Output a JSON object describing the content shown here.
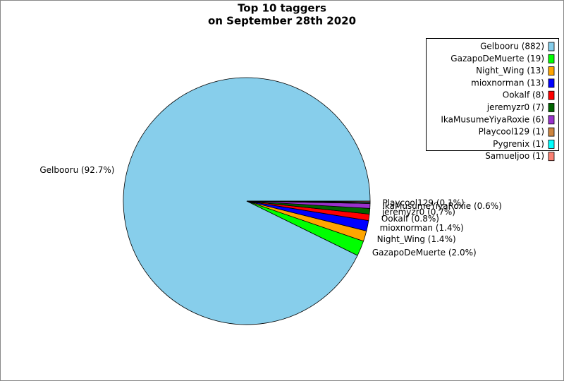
{
  "chart_data": {
    "type": "pie",
    "title": "Top 10 taggers",
    "subtitle": "on September 28th 2020",
    "categories": [
      "Gelbooru",
      "GazapoDeMuerte",
      "Night_Wing",
      "mioxnorman",
      "Ookalf",
      "jeremyzr0",
      "IkaMusumeYiyaRoxie",
      "Playcool129",
      "Pygrenix",
      "Samueljoo"
    ],
    "values": [
      882,
      19,
      13,
      13,
      8,
      7,
      6,
      1,
      1,
      1
    ],
    "value_labels": [
      "Gelbooru (92.7%)",
      "GazapoDeMuerte (2.0%)",
      "Night_Wing (1.4%)",
      "mioxnorman (1.4%)",
      "Ookalf (0.8%)",
      "jeremyzr0 (0.7%)",
      "IkaMusumeYiyaRoxie (0.6%)",
      "Playcool129 (0.1%)",
      null,
      null
    ],
    "legend_labels": [
      "Gelbooru (882)",
      "GazapoDeMuerte (19)",
      "Night_Wing (13)",
      "mioxnorman (13)",
      "Ookalf (8)",
      "jeremyzr0 (7)",
      "IkaMusumeYiyaRoxie (6)",
      "Playcool129 (1)",
      "Pygrenix (1)",
      "Samueljoo (1)"
    ],
    "colors": [
      "#87ceeb",
      "#00ff00",
      "#ffa500",
      "#0000ff",
      "#ff0000",
      "#006400",
      "#9932cc",
      "#cd853f",
      "#00ffff",
      "#fa8072"
    ],
    "legend": "upper right"
  }
}
